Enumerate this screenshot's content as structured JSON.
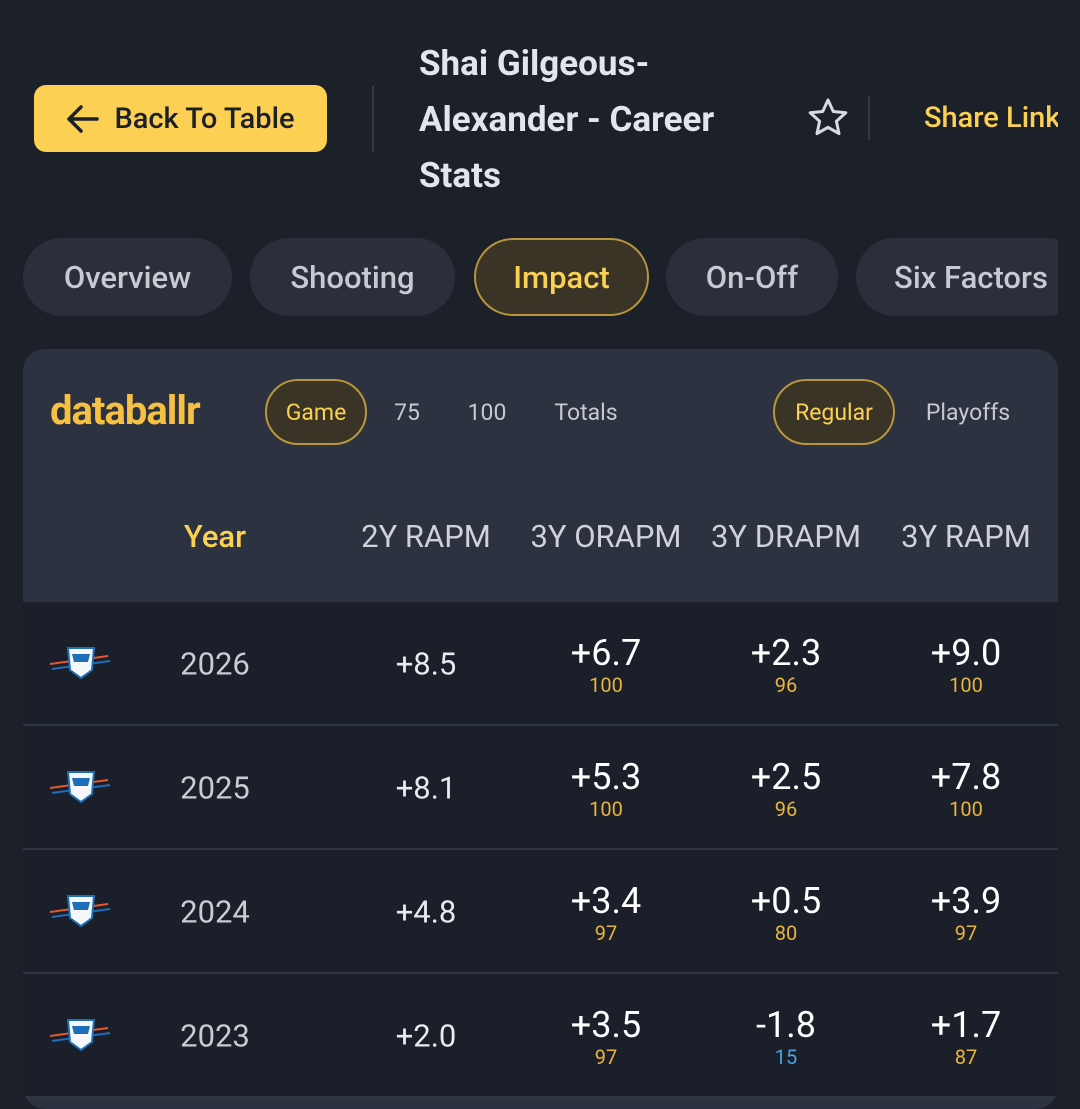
{
  "header": {
    "back_button": "Back To Table",
    "title": "Shai Gilgeous-Alexander - Career Stats",
    "share": "Share Link"
  },
  "tabs": {
    "items": [
      "Overview",
      "Shooting",
      "Impact",
      "On-Off",
      "Six Factors"
    ],
    "active": 2
  },
  "card": {
    "logo": "databallr",
    "modes": {
      "items": [
        "Game",
        "75",
        "100",
        "Totals"
      ],
      "active": 0
    },
    "seasons": {
      "items": [
        "Regular",
        "Playoffs"
      ],
      "active": 0
    },
    "columns": [
      "Year",
      "2Y RAPM",
      "3Y ORAPM",
      "3Y DRAPM",
      "3Y RAPM"
    ],
    "rows": [
      {
        "year": "2026",
        "rapm2": "+8.5",
        "orapm3": "+6.7",
        "orapm3_pct": 100,
        "drapm3": "+2.3",
        "drapm3_pct": 96,
        "rapm3": "+9.0",
        "rapm3_pct": 100
      },
      {
        "year": "2025",
        "rapm2": "+8.1",
        "orapm3": "+5.3",
        "orapm3_pct": 100,
        "drapm3": "+2.5",
        "drapm3_pct": 96,
        "rapm3": "+7.8",
        "rapm3_pct": 100
      },
      {
        "year": "2024",
        "rapm2": "+4.8",
        "orapm3": "+3.4",
        "orapm3_pct": 97,
        "drapm3": "+0.5",
        "drapm3_pct": 80,
        "rapm3": "+3.9",
        "rapm3_pct": 97
      },
      {
        "year": "2023",
        "rapm2": "+2.0",
        "orapm3": "+3.5",
        "orapm3_pct": 97,
        "drapm3": "-1.8",
        "drapm3_pct": 15,
        "rapm3": "+1.7",
        "rapm3_pct": 87
      }
    ]
  }
}
